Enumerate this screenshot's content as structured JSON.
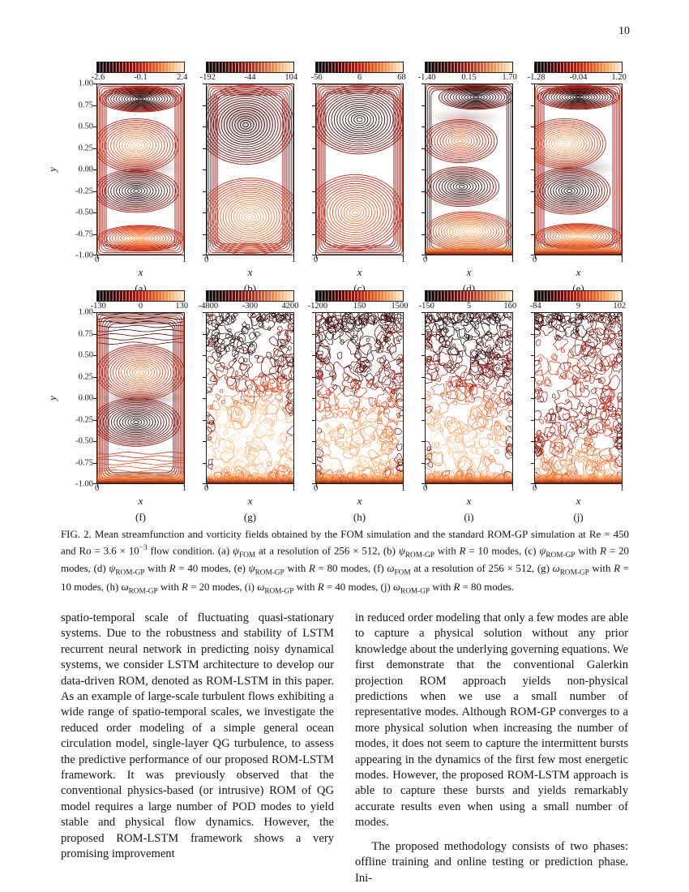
{
  "page": {
    "number": "10"
  },
  "figure": {
    "name": "FIG. 2.",
    "caption": "FIG. 2. Mean streamfunction and vorticity fields obtained by the FOM simulation and the standard ROM-GP simulation at Re = 450 and Ro = 3.6 × 10^{−3} flow condition. (a) *ψ*_{FOM} at a resolution of 256 × 512, (b) *ψ*_{ROM-GP} with *R* = 10 modes, (c) *ψ*_{ROM-GP} with *R* = 20 modes, (d) *ψ*_{ROM-GP} with *R* = 40 modes, (e) *ψ*_{ROM-GP} with *R* = 80 modes, (f) *ω*_{FOM} at a resolution of 256 × 512, (g) *ω*_{ROM-GP} with *R* = 10 modes, (h) *ω*_{ROM-GP} with *R* = 20 modes, (i) *ω*_{ROM-GP} with *R* = 40 modes, (j) *ω*_{ROM-GP} with *R* = 80 modes."
  },
  "chart_data": {
    "type": "contour",
    "layout": {
      "rows": 2,
      "cols": 5
    },
    "x_range": [
      0,
      1
    ],
    "y_range": [
      -1,
      1
    ],
    "xticks": [
      "0",
      "1"
    ],
    "yticks": [
      "1.00",
      "0.75",
      "0.50",
      "0.25",
      "0.00",
      "-0.25",
      "-0.50",
      "-0.75",
      "-1.00"
    ],
    "xlabel": "x",
    "ylabel": "y",
    "colormap": "black-darkred-red-orange-cream",
    "colors": {
      "dark": "#0a0a0a",
      "red": "#ba2010",
      "orange": "#f09048",
      "cream": "#fdecd6"
    },
    "panels": [
      {
        "id": "a",
        "row": 0,
        "label": "(a)",
        "title": "ψ FOM at a resolution of 256 × 512",
        "colorbar": {
          "min": "-2.6",
          "mid": "-0.1",
          "max": "2.4"
        },
        "render": {
          "style": "smooth",
          "wall": {
            "n": 6,
            "t0": 0.5,
            "t1": 0.42
          },
          "shade": [
            {
              "cx": 0.5,
              "cy": 0.02,
              "rx": 0.48,
              "ry": 0.14,
              "t": 0.12,
              "a": 0.35
            }
          ],
          "lobes": [
            {
              "cx": 0.5,
              "cy": 0.82,
              "rx": 0.46,
              "ry": 0.15,
              "tc": 0.04,
              "te": 0.42
            },
            {
              "cx": 0.45,
              "cy": 0.28,
              "rx": 0.48,
              "ry": 0.31,
              "tc": 0.93,
              "te": 0.48
            },
            {
              "cx": 0.45,
              "cy": -0.25,
              "rx": 0.48,
              "ry": 0.25,
              "tc": 0.02,
              "te": 0.42
            },
            {
              "cx": 0.5,
              "cy": -0.8,
              "rx": 0.48,
              "ry": 0.15,
              "tc": 0.88,
              "te": 0.5
            }
          ]
        }
      },
      {
        "id": "b",
        "row": 0,
        "label": "(b)",
        "title": "ψ ROM-GP with R = 10 modes",
        "colorbar": {
          "min": "-192",
          "mid": "-44",
          "max": "104"
        },
        "render": {
          "style": "smooth",
          "wall": {
            "n": 7,
            "t0": 0.5,
            "t1": 0.38
          },
          "shade": [
            {
              "cx": 0.45,
              "cy": 0.6,
              "rx": 0.5,
              "ry": 0.3,
              "t": 0.3,
              "a": 0.25
            }
          ],
          "lobes": [
            {
              "cx": 0.45,
              "cy": 0.52,
              "rx": 0.55,
              "ry": 0.46,
              "tc": 0.02,
              "te": 0.4
            },
            {
              "cx": 0.5,
              "cy": -0.55,
              "rx": 0.58,
              "ry": 0.45,
              "tc": 0.9,
              "te": 0.52
            }
          ]
        }
      },
      {
        "id": "c",
        "row": 0,
        "label": "(c)",
        "title": "ψ ROM-GP with R = 20 modes",
        "colorbar": {
          "min": "-56",
          "mid": "6",
          "max": "68"
        },
        "render": {
          "style": "smooth",
          "wall": {
            "n": 6,
            "t0": 0.48,
            "t1": 0.35
          },
          "lobes": [
            {
              "cx": 0.5,
              "cy": 0.58,
              "rx": 0.54,
              "ry": 0.4,
              "tc": 0.03,
              "te": 0.38
            },
            {
              "cx": 0.45,
              "cy": -0.5,
              "rx": 0.54,
              "ry": 0.44,
              "tc": 0.8,
              "te": 0.5
            }
          ]
        }
      },
      {
        "id": "d",
        "row": 0,
        "label": "(d)",
        "title": "ψ ROM-GP with R = 40 modes",
        "colorbar": {
          "min": "-1.40",
          "mid": "0.15",
          "max": "1.70"
        },
        "render": {
          "style": "smooth",
          "bottomBand": 1,
          "wall": {
            "n": 4,
            "t0": 0.42,
            "t1": 0.3
          },
          "shade": [
            {
              "cx": 0.5,
              "cy": 0.97,
              "rx": 0.55,
              "ry": 0.1,
              "t": 0.1,
              "a": 0.5
            },
            {
              "cx": 0.45,
              "cy": 0.6,
              "rx": 0.45,
              "ry": 0.12,
              "t": 0.3,
              "a": 0.25
            }
          ],
          "lobes": [
            {
              "cx": 0.58,
              "cy": 0.84,
              "rx": 0.42,
              "ry": 0.14,
              "tc": 0.03,
              "te": 0.33
            },
            {
              "cx": 0.4,
              "cy": 0.33,
              "rx": 0.42,
              "ry": 0.25,
              "tc": 0.8,
              "te": 0.42
            },
            {
              "cx": 0.42,
              "cy": -0.2,
              "rx": 0.42,
              "ry": 0.23,
              "tc": 0.05,
              "te": 0.4
            },
            {
              "cx": 0.5,
              "cy": -0.72,
              "rx": 0.5,
              "ry": 0.23,
              "tc": 0.97,
              "te": 0.55
            }
          ]
        }
      },
      {
        "id": "e",
        "row": 0,
        "label": "(e)",
        "title": "ψ ROM-GP with R = 80 modes",
        "colorbar": {
          "min": "-1.28",
          "mid": "-0.04",
          "max": "1.20"
        },
        "render": {
          "style": "smooth",
          "bottomBand": 1,
          "wall": {
            "n": 6,
            "t0": 0.5,
            "t1": 0.4
          },
          "shade": [
            {
              "cx": 0.45,
              "cy": 0.02,
              "rx": 0.48,
              "ry": 0.13,
              "t": 0.12,
              "a": 0.35
            }
          ],
          "lobes": [
            {
              "cx": 0.5,
              "cy": 0.84,
              "rx": 0.46,
              "ry": 0.14,
              "tc": 0.04,
              "te": 0.42
            },
            {
              "cx": 0.35,
              "cy": 0.3,
              "rx": 0.46,
              "ry": 0.29,
              "tc": 0.97,
              "te": 0.5
            },
            {
              "cx": 0.4,
              "cy": -0.25,
              "rx": 0.46,
              "ry": 0.27,
              "tc": 0.02,
              "te": 0.42
            },
            {
              "cx": 0.5,
              "cy": -0.78,
              "rx": 0.48,
              "ry": 0.15,
              "tc": 0.95,
              "te": 0.5
            }
          ]
        }
      },
      {
        "id": "f",
        "row": 1,
        "label": "(f)",
        "title": "ω FOM at a resolution of 256 × 512",
        "colorbar": {
          "min": "-130",
          "mid": "0",
          "max": "130"
        },
        "render": {
          "style": "smooth",
          "bottomBand": 1,
          "wall": {
            "n": 7,
            "t0": 0.5,
            "t1": 0.3
          },
          "shade": [
            {
              "cx": 0.5,
              "cy": 0.0,
              "rx": 0.5,
              "ry": 0.1,
              "t": 0.15,
              "a": 0.4
            }
          ],
          "layers": {
            "top": {
              "from": 0.98,
              "to": 0.64,
              "t0": 0.12,
              "t1": 0.32,
              "n": 8
            },
            "bottom": {
              "from": -0.64,
              "to": -0.97,
              "t0": 0.55,
              "t1": 0.75,
              "n": 9
            }
          },
          "lobes": [
            {
              "cx": 0.5,
              "cy": 0.3,
              "rx": 0.5,
              "ry": 0.32,
              "tc": 0.85,
              "te": 0.45
            },
            {
              "cx": 0.45,
              "cy": -0.28,
              "rx": 0.5,
              "ry": 0.28,
              "tc": 0.06,
              "te": 0.4
            }
          ]
        }
      },
      {
        "id": "g",
        "row": 1,
        "label": "(g)",
        "title": "ω ROM-GP with R = 10 modes",
        "colorbar": {
          "min": "-4800",
          "mid": "-300",
          "max": "4200"
        },
        "render": {
          "style": "turbulent",
          "seed": 11,
          "base": 0.42,
          "bottomBand": 1,
          "dark": [
            {
              "cx": 0.5,
              "cy": 0.55,
              "r": 0.5,
              "amt": 0.3
            },
            {
              "cx": 0.2,
              "cy": 0.85,
              "r": 0.3,
              "amt": 0.2
            }
          ],
          "light": [
            {
              "cx": 0.35,
              "cy": -0.5,
              "r": 0.55,
              "amt": 0.45
            },
            {
              "cx": 0.8,
              "cy": -0.15,
              "r": 0.3,
              "amt": 0.2
            }
          ]
        }
      },
      {
        "id": "h",
        "row": 1,
        "label": "(h)",
        "title": "ω ROM-GP with R = 20 modes",
        "colorbar": {
          "min": "-1200",
          "mid": "150",
          "max": "1500"
        },
        "render": {
          "style": "turbulent",
          "seed": 23,
          "base": 0.42,
          "bottomBand": 1,
          "dark": [
            {
              "cx": 0.45,
              "cy": 0.6,
              "r": 0.55,
              "amt": 0.35
            }
          ],
          "light": [
            {
              "cx": 0.4,
              "cy": -0.45,
              "r": 0.55,
              "amt": 0.45
            }
          ]
        }
      },
      {
        "id": "i",
        "row": 1,
        "label": "(i)",
        "title": "ω ROM-GP with R = 40 modes",
        "colorbar": {
          "min": "-150",
          "mid": "5",
          "max": "160"
        },
        "render": {
          "style": "turbulent",
          "seed": 37,
          "base": 0.4,
          "bottomBand": 1,
          "dark": [
            {
              "cx": 0.5,
              "cy": 0.85,
              "r": 0.45,
              "amt": 0.35
            },
            {
              "cx": 0.65,
              "cy": 0.3,
              "r": 0.35,
              "amt": 0.15
            }
          ],
          "light": [
            {
              "cx": 0.45,
              "cy": -0.4,
              "r": 0.55,
              "amt": 0.45
            }
          ]
        }
      },
      {
        "id": "j",
        "row": 1,
        "label": "(j)",
        "title": "ω ROM-GP with R = 80 modes",
        "colorbar": {
          "min": "-84",
          "mid": "9",
          "max": "102"
        },
        "render": {
          "style": "turbulent",
          "seed": 53,
          "base": 0.42,
          "bottomBand": 1,
          "dark": [
            {
              "cx": 0.3,
              "cy": 0.8,
              "r": 0.35,
              "amt": 0.4
            },
            {
              "cx": 0.35,
              "cy": -0.15,
              "r": 0.35,
              "amt": 0.35
            }
          ],
          "light": [
            {
              "cx": 0.28,
              "cy": 0.38,
              "r": 0.3,
              "amt": 0.45
            },
            {
              "cx": 0.4,
              "cy": -0.75,
              "r": 0.45,
              "amt": 0.35
            }
          ]
        }
      }
    ]
  },
  "body": {
    "columns": [
      {
        "paragraphs": [
          {
            "indent": false,
            "text": "spatio-temporal scale of fluctuating quasi-stationary systems.  Due to the robustness and stability of LSTM recurrent neural network in predicting noisy dynamical systems, we consider LSTM architecture to develop our data-driven ROM, denoted as ROM-LSTM in this paper. As an example of large-scale turbulent flows exhibiting a wide range of spatio-temporal scales, we investigate the reduced order modeling of a simple general ocean circulation model, single-layer QG turbulence, to assess the predictive performance of our proposed ROM-LSTM framework.  It was previously observed that the conventional physics-based (or intrusive) ROM of QG model requires a large number of POD modes to yield stable and physical flow dynamics.  However, the proposed ROM-LSTM framework shows a very promising improvement"
          }
        ]
      },
      {
        "paragraphs": [
          {
            "indent": false,
            "text": "in reduced order modeling that only a few modes are able to capture a physical solution without any prior knowledge about the underlying governing equations. We first demonstrate that the conventional Galerkin projection ROM approach yields non-physical predictions when we use a small number of representative modes.  Although ROM-GP converges to a more physical solution when increasing the number of modes, it does not seem to capture the intermittent bursts appearing in the dynamics of the first few most energetic modes.  However, the proposed ROM-LSTM approach is able to capture these bursts and yields remarkably accurate results even when using a small number of modes."
          },
          {
            "indent": true,
            "text": "The proposed methodology consists of two phases: offline training and online testing or prediction phase. Ini-"
          }
        ]
      }
    ]
  }
}
